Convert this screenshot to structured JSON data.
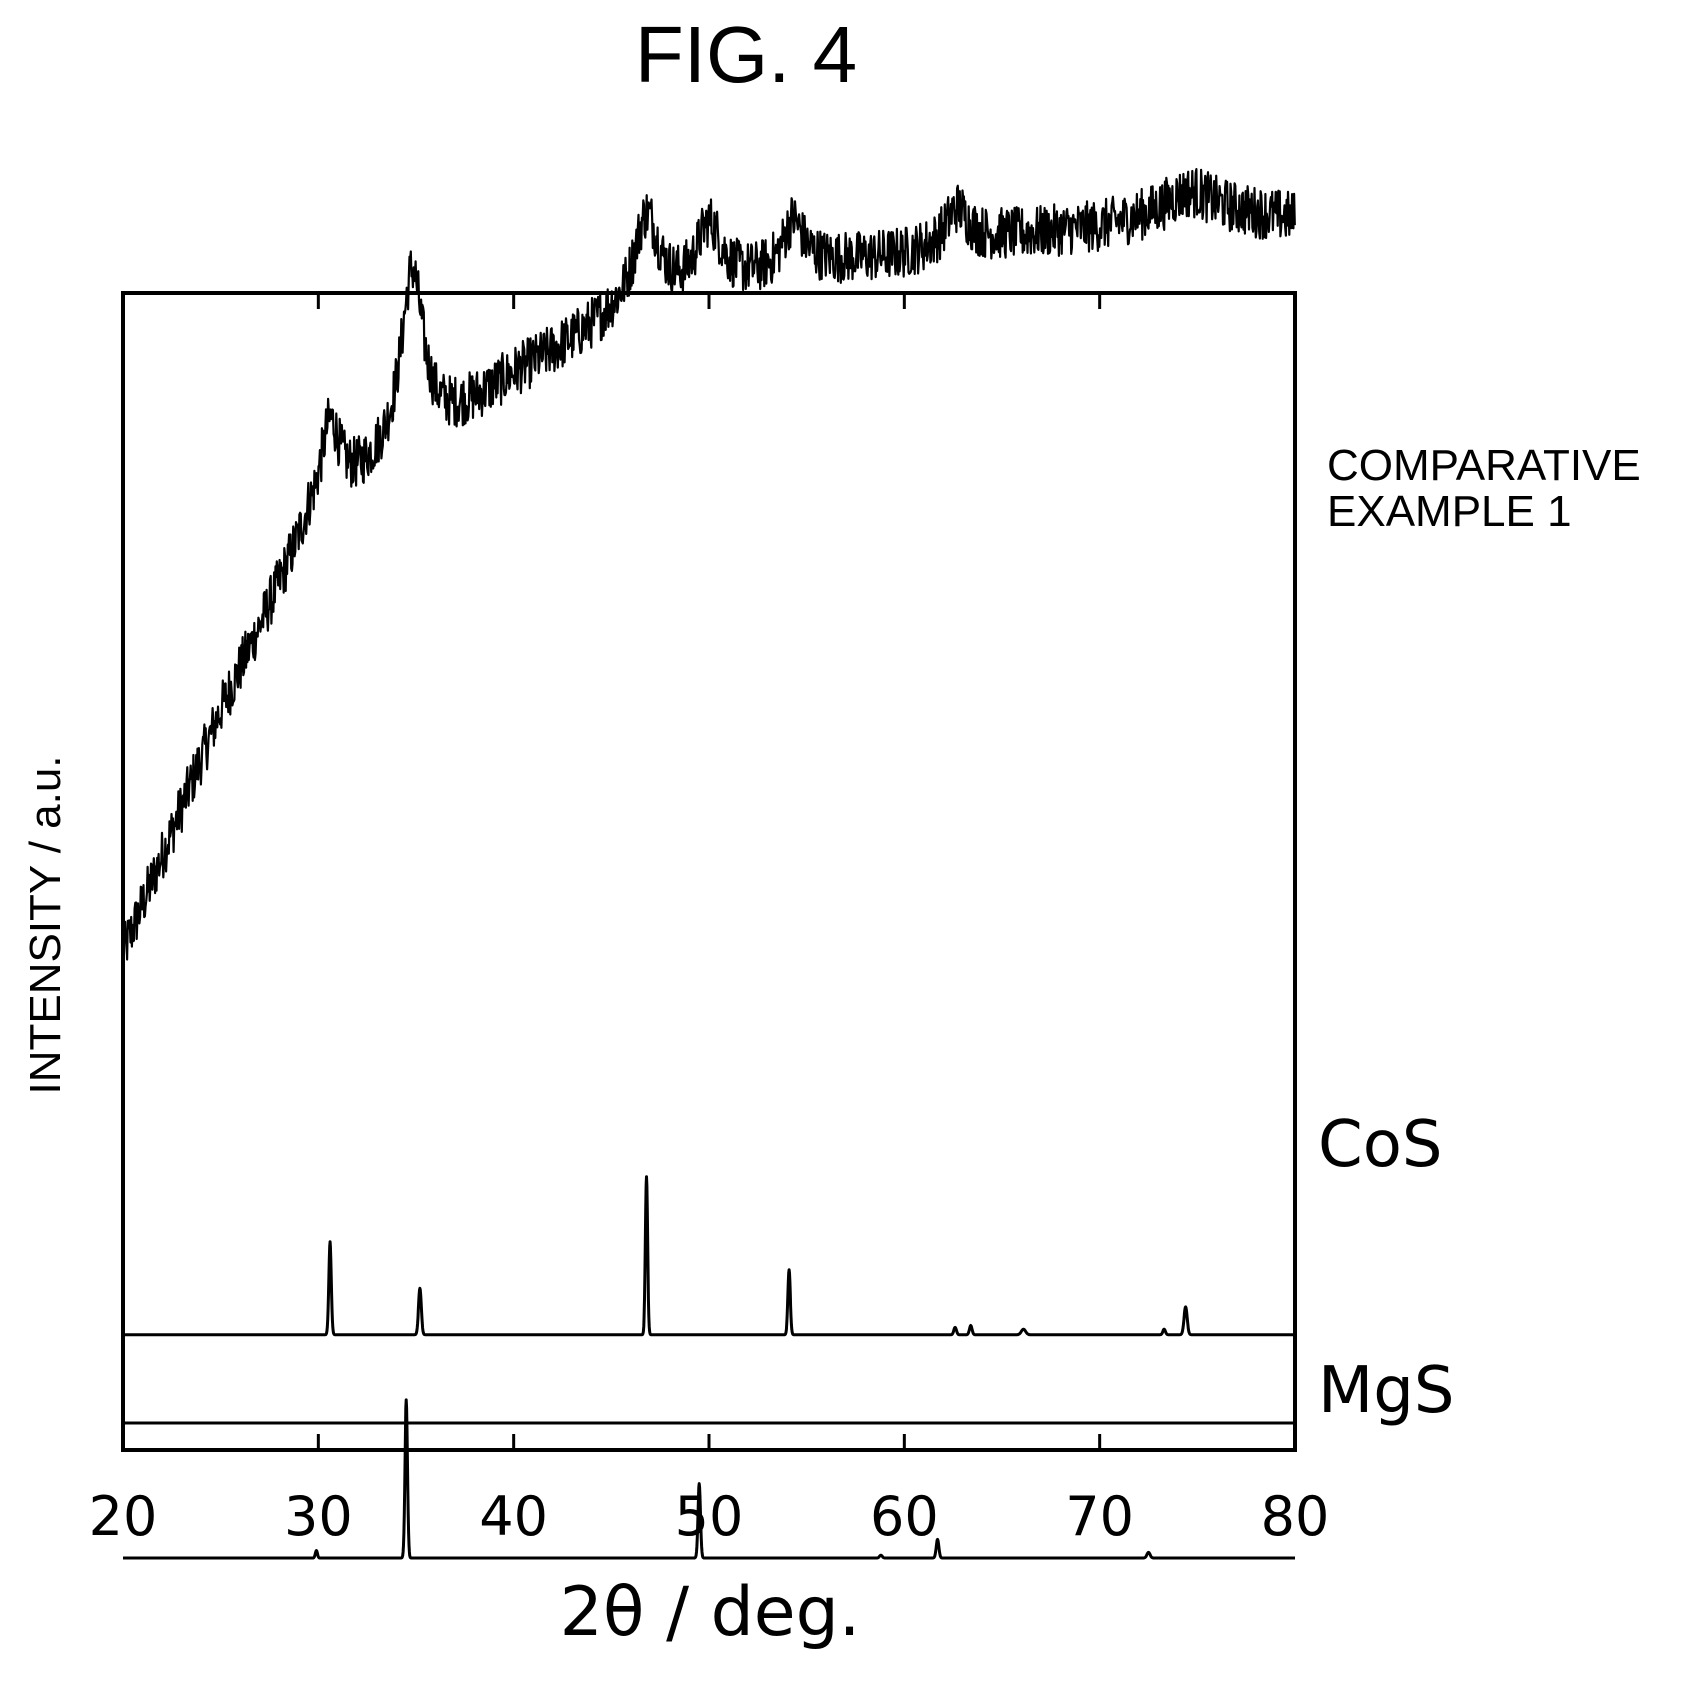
{
  "figure_title": "FIG. 4",
  "chart_data": {
    "type": "line",
    "title": "",
    "xlabel": "2θ / deg.",
    "ylabel": "INTENSITY / a.u.",
    "xlim": [
      20,
      80
    ],
    "x_ticks": [
      "20",
      "30",
      "40",
      "50",
      "60",
      "70",
      "80"
    ],
    "y_ticks": [],
    "grid": false,
    "series": [
      {
        "name": "COMPARATIVE EXAMPLE 1",
        "label_lines": [
          "COMPARATIVE",
          "EXAMPLE 1"
        ],
        "kind": "measured",
        "baseline_offset": 0.0,
        "base": [
          [
            20,
            0.05
          ],
          [
            25,
            0.31
          ],
          [
            29.5,
            0.51
          ],
          [
            33,
            0.57
          ],
          [
            36,
            0.61
          ],
          [
            40,
            0.67
          ],
          [
            45,
            0.73
          ],
          [
            50,
            0.76
          ],
          [
            55,
            0.79
          ],
          [
            60,
            0.8
          ],
          [
            65,
            0.82
          ],
          [
            70,
            0.83
          ],
          [
            75,
            0.85
          ],
          [
            80,
            0.84
          ]
        ],
        "peaks": [
          {
            "x": 30.6,
            "height": 0.09,
            "width": 0.6
          },
          {
            "x": 34.8,
            "height": 0.19,
            "width": 0.7
          },
          {
            "x": 46.8,
            "height": 0.1,
            "width": 0.8
          },
          {
            "x": 50.0,
            "height": 0.07,
            "width": 0.8
          },
          {
            "x": 54.3,
            "height": 0.05,
            "width": 0.6
          },
          {
            "x": 62.7,
            "height": 0.04,
            "width": 0.7
          },
          {
            "x": 74.5,
            "height": 0.02,
            "width": 1.5
          }
        ],
        "noise": 0.028
      },
      {
        "name": "CoS",
        "label_lines": [
          "CoS"
        ],
        "kind": "reference",
        "baseline_offset": -0.36,
        "peaks": [
          {
            "x": 30.6,
            "height": 0.1,
            "width": 0.14
          },
          {
            "x": 35.2,
            "height": 0.05,
            "width": 0.16
          },
          {
            "x": 46.8,
            "height": 0.17,
            "width": 0.13
          },
          {
            "x": 54.1,
            "height": 0.07,
            "width": 0.14
          },
          {
            "x": 62.6,
            "height": 0.008,
            "width": 0.15
          },
          {
            "x": 63.4,
            "height": 0.01,
            "width": 0.15
          },
          {
            "x": 66.1,
            "height": 0.006,
            "width": 0.25
          },
          {
            "x": 73.3,
            "height": 0.006,
            "width": 0.15
          },
          {
            "x": 74.4,
            "height": 0.03,
            "width": 0.18
          }
        ],
        "noise": 0
      },
      {
        "name": "MgS",
        "label_lines": [
          "MgS"
        ],
        "kind": "reference",
        "baseline_offset": -0.6,
        "peaks": [
          {
            "x": 29.9,
            "height": 0.008,
            "width": 0.12
          },
          {
            "x": 34.5,
            "height": 0.17,
            "width": 0.14
          },
          {
            "x": 49.5,
            "height": 0.08,
            "width": 0.14
          },
          {
            "x": 58.8,
            "height": 0.003,
            "width": 0.15
          },
          {
            "x": 61.7,
            "height": 0.02,
            "width": 0.15
          },
          {
            "x": 72.5,
            "height": 0.006,
            "width": 0.18
          }
        ],
        "noise": 0
      }
    ]
  }
}
